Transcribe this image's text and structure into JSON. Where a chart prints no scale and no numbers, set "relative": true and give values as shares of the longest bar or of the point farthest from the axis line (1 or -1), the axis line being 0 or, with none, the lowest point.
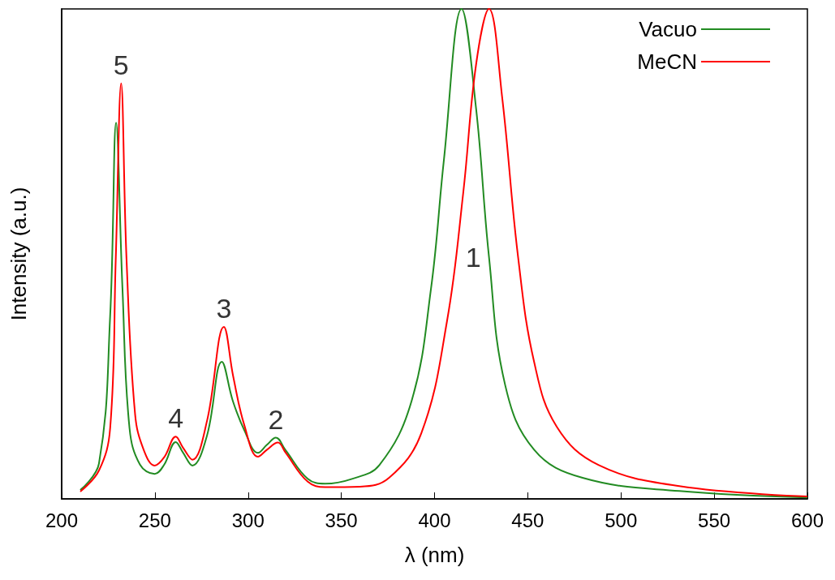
{
  "chart_data": {
    "type": "line",
    "relative": true,
    "xlabel": "λ (nm)",
    "ylabel": "Intensity (a.u.)",
    "xlim": [
      200,
      600
    ],
    "xticks": [
      200,
      250,
      300,
      350,
      400,
      450,
      500,
      550,
      600
    ],
    "legend": "top right",
    "grid": false,
    "marker": "none",
    "line_style": "solid",
    "annotations": [
      {
        "text": "5",
        "x": 231.9,
        "y": 0.848
      },
      {
        "text": "4",
        "x": 261.2,
        "y": 0.127
      },
      {
        "text": "3",
        "x": 287,
        "y": 0.351
      },
      {
        "text": "2",
        "x": 314.9,
        "y": 0.125
      },
      {
        "text": "1",
        "x": 429.2,
        "y": 0.494
      }
    ],
    "series": [
      {
        "name": "Vacuo",
        "color": "#228b22",
        "x": [
          210,
          220,
          226,
          229.2,
          232.6,
          236.4,
          242,
          249.9,
          255,
          261.2,
          265,
          270.1,
          278,
          285.9,
          291.8,
          298,
          305.3,
          310,
          314.9,
          320,
          332,
          341.3,
          355,
          370.4,
          387.7,
          398.1,
          405,
          414.5,
          422.3,
          429.2,
          437.9,
          453.5,
          479.4,
          531.3,
          600
        ],
        "values": [
          0.018,
          0.072,
          0.373,
          0.768,
          0.43,
          0.144,
          0.07,
          0.051,
          0.07,
          0.116,
          0.095,
          0.068,
          0.13,
          0.28,
          0.2,
          0.14,
          0.094,
          0.11,
          0.125,
          0.1,
          0.041,
          0.031,
          0.04,
          0.069,
          0.2,
          0.429,
          0.691,
          1,
          0.796,
          0.494,
          0.232,
          0.1,
          0.043,
          0.016,
          0.003
        ]
      },
      {
        "name": "MeCN",
        "color": "#ff0000",
        "x": [
          210,
          220,
          226,
          229,
          231.9,
          234.8,
          239.4,
          244,
          249.9,
          255,
          261.2,
          265,
          270.1,
          278,
          287,
          292,
          298,
          305.3,
          310,
          316,
          320,
          332,
          341.3,
          360,
          375.6,
          392.9,
          406.7,
          415.4,
          422.3,
          429.2,
          436.2,
          444.8,
          453.5,
          465.6,
          488.1,
          531.3,
          600
        ],
        "values": [
          0.015,
          0.058,
          0.144,
          0.488,
          0.848,
          0.488,
          0.172,
          0.1,
          0.068,
          0.085,
          0.127,
          0.105,
          0.08,
          0.16,
          0.351,
          0.25,
          0.15,
          0.086,
          0.1,
          0.115,
          0.095,
          0.035,
          0.024,
          0.025,
          0.043,
          0.134,
          0.363,
          0.625,
          0.887,
          1,
          0.822,
          0.494,
          0.278,
          0.147,
          0.069,
          0.026,
          0.005
        ]
      }
    ]
  }
}
